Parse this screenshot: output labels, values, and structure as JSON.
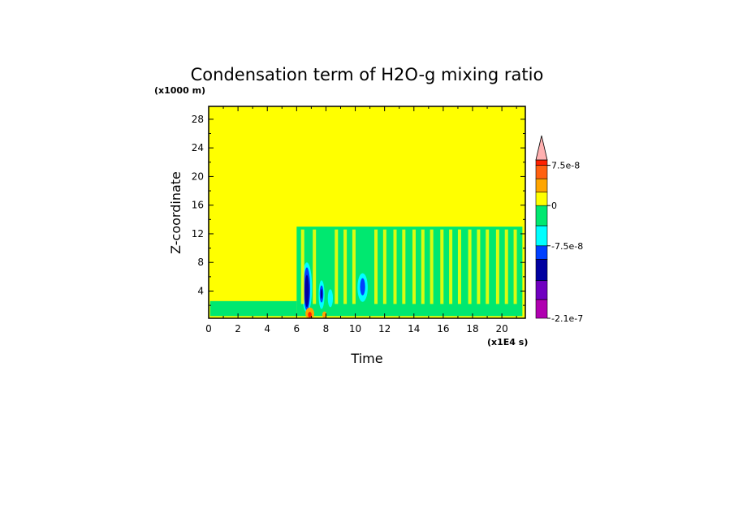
{
  "chart_data": {
    "type": "heatmap",
    "title": "Condensation term of H2O-g mixing ratio",
    "xlabel": "Time",
    "ylabel": "Z-coordinate",
    "x_unit": "(x1E4 s)",
    "y_unit": "(x1000 m)",
    "xlim": [
      0,
      21.6
    ],
    "ylim": [
      0.2,
      29.8
    ],
    "x_ticks": [
      "0",
      "2",
      "4",
      "6",
      "8",
      "10",
      "12",
      "14",
      "16",
      "18",
      "20"
    ],
    "y_ticks": [
      "4",
      "8",
      "12",
      "16",
      "20",
      "24",
      "28"
    ],
    "background_color": "#ffff00",
    "grid": false,
    "colorbar": {
      "placement": "right",
      "labels": [
        "7.5e-8",
        "0",
        "-7.5e-8",
        "-2.1e-7"
      ],
      "bands": [
        {
          "color": "#b000b0",
          "from": -2.1e-07,
          "to": -1.75e-07
        },
        {
          "color": "#7000c0",
          "from": -1.75e-07,
          "to": -1.4e-07
        },
        {
          "color": "#0000a0",
          "from": -1.4e-07,
          "to": -1e-07
        },
        {
          "color": "#0040ff",
          "from": -1e-07,
          "to": -7.5e-08
        },
        {
          "color": "#00ffff",
          "from": -7.5e-08,
          "to": -3.75e-08
        },
        {
          "color": "#00e870",
          "from": -3.75e-08,
          "to": 0
        },
        {
          "color": "#ffff00",
          "from": 0,
          "to": 2.5e-08
        },
        {
          "color": "#ffa500",
          "from": 2.5e-08,
          "to": 5e-08
        },
        {
          "color": "#ff6010",
          "from": 5e-08,
          "to": 7.5e-08
        },
        {
          "color": "#ff2000",
          "from": 7.5e-08,
          "to": 8.5e-08
        },
        {
          "color": "#ffb0b0",
          "from": 8.5e-08,
          "to": null
        }
      ]
    },
    "regions": [
      {
        "kind": "band",
        "color": "#00e870",
        "x0": 0.1,
        "x1": 6.0,
        "y0": 0.5,
        "y1": 2.6
      },
      {
        "kind": "band",
        "color": "#00e870",
        "x0": 6.0,
        "x1": 21.4,
        "y0": 0.5,
        "y1": 13.0
      },
      {
        "kind": "band",
        "color": "#00e870",
        "x0": 12.2,
        "x1": 21.0,
        "y0": 9.6,
        "y1": 10.1
      },
      {
        "kind": "blob",
        "color": "#00ffff",
        "x": 6.7,
        "y": 4.5,
        "w": 0.7,
        "h": 7.0
      },
      {
        "kind": "blob",
        "color": "#0040ff",
        "x": 6.7,
        "y": 4.3,
        "w": 0.45,
        "h": 6.0
      },
      {
        "kind": "blob",
        "color": "#0000a0",
        "x": 6.7,
        "y": 4.0,
        "w": 0.3,
        "h": 4.5
      },
      {
        "kind": "blob",
        "color": "#00ffff",
        "x": 7.7,
        "y": 3.5,
        "w": 0.4,
        "h": 4.0
      },
      {
        "kind": "blob",
        "color": "#0040ff",
        "x": 7.7,
        "y": 3.6,
        "w": 0.25,
        "h": 2.4
      },
      {
        "kind": "blob",
        "color": "#0000a0",
        "x": 7.7,
        "y": 3.6,
        "w": 0.12,
        "h": 1.4
      },
      {
        "kind": "blob",
        "color": "#00ffff",
        "x": 8.3,
        "y": 3.0,
        "w": 0.35,
        "h": 2.5
      },
      {
        "kind": "blob",
        "color": "#00ffff",
        "x": 10.5,
        "y": 4.5,
        "w": 0.7,
        "h": 4.0
      },
      {
        "kind": "blob",
        "color": "#0040ff",
        "x": 10.5,
        "y": 4.6,
        "w": 0.35,
        "h": 2.4
      },
      {
        "kind": "blob",
        "color": "#ffa500",
        "x": 6.9,
        "y": 0.9,
        "w": 0.6,
        "h": 1.6
      },
      {
        "kind": "blob",
        "color": "#ff2000",
        "x": 6.9,
        "y": 0.7,
        "w": 0.25,
        "h": 0.8
      },
      {
        "kind": "blob",
        "color": "#ffa500",
        "x": 7.9,
        "y": 0.7,
        "w": 0.3,
        "h": 0.9
      }
    ]
  }
}
